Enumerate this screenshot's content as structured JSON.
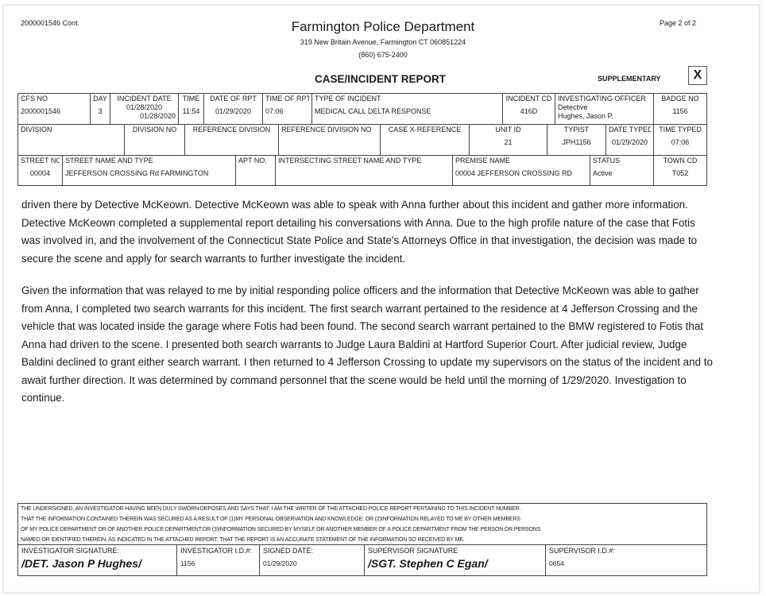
{
  "header": {
    "case_cont": "2000001546 Cont.",
    "page": "Page 2 of 2",
    "department": "Farmington Police Department",
    "address": "319 New Britain Avenue, Farmington  CT 060851224",
    "phone": "(860) 675-2400",
    "report_title": "CASE/INCIDENT REPORT",
    "report_type": "SUPPLEMENTARY",
    "checkbox_mark": "X"
  },
  "table": {
    "row1": [
      {
        "label": "CFS NO",
        "value": "2000001546"
      },
      {
        "label": "DAY",
        "value": "3"
      },
      {
        "label": "INCIDENT DATE",
        "value": "01/28/2020",
        "value2": "01/28/2020"
      },
      {
        "label": "TIME",
        "value": "11:54"
      },
      {
        "label": "DATE OF RPT",
        "value": "01/29/2020"
      },
      {
        "label": "TIME OF RPT",
        "value": "07:06"
      },
      {
        "label": "TYPE OF INCIDENT",
        "value": "MEDICAL CALL DELTA RESPONSE"
      },
      {
        "label": "INCIDENT CD",
        "value": "416D"
      },
      {
        "label": "INVESTIGATING OFFICER",
        "value": "Detective",
        "value2": "Hughes,  Jason P."
      },
      {
        "label": "BADGE NO",
        "value": "1156"
      }
    ],
    "row2": [
      {
        "label": "DIVISION",
        "value": ""
      },
      {
        "label": "DIVISION NO",
        "value": ""
      },
      {
        "label": "REFERENCE DIVISION",
        "value": ""
      },
      {
        "label": "REFERENCE DIVISION NO",
        "value": ""
      },
      {
        "label": "CASE X-REFERENCE",
        "value": ""
      },
      {
        "label": "UNIT ID",
        "value": "21"
      },
      {
        "label": "TYPIST",
        "value": "JPH1156"
      },
      {
        "label": "DATE TYPED",
        "value": "01/29/2020"
      },
      {
        "label": "TIME TYPED",
        "value": "07:06"
      }
    ],
    "row3": [
      {
        "label": "STREET NO",
        "value": "00004"
      },
      {
        "label": "STREET NAME AND TYPE",
        "value": "JEFFERSON CROSSING Rd   FARMINGTON"
      },
      {
        "label": "APT NO.",
        "value": ""
      },
      {
        "label": "INTERSECTING STREET NAME AND TYPE",
        "value": ""
      },
      {
        "label": "PREMISE NAME",
        "value": "00004 JEFFERSON CROSSING RD"
      },
      {
        "label": "STATUS",
        "value": "Active"
      },
      {
        "label": "TOWN CD",
        "value": "T052"
      }
    ]
  },
  "narrative": [
    "driven there by Detective McKeown. Detective McKeown was able to speak with Anna further about this incident and gather more information. Detective McKeown completed a supplemental report detailing his conversations with Anna. Due to the high profile nature of the case that Fotis was involved in, and the involvement of the Connecticut State Police and State's Attorneys Office in that investigation, the decision was made to secure the scene and apply for search warrants to further investigate the incident.",
    "Given the information that was relayed to me by initial responding police officers and the information that Detective McKeown was able to gather from Anna, I completed two search warrants for this incident. The first search warrant pertained to the residence at 4 Jefferson Crossing and the vehicle that was located inside the garage where Fotis had been found. The second search warrant pertained to the BMW registered to Fotis that Anna had driven to the scene. I presented both search warrants to Judge Laura Baldini at Hartford Superior Court. After judicial review, Judge Baldini declined to grant either search warrant. I then returned to 4 Jefferson Crossing to update my supervisors on the status of the incident and to await further direction. It was determined by command personnel that the scene would be held until the morning of 1/29/2020. Investigation to continue."
  ],
  "footer": {
    "oath": [
      "THE UNDERSIGNED, AN INVESTIGATOR HAVING BEEN DULY SWORN  DEPOSES AND SAYS THAT: I AM THE WRITER OF THE ATTACHED POLICE REPORT PERTAINING TO THIS INCIDENT NUMBER.",
      "THAT THE INFORMATION CONTAINED THEREIN WAS SECURED AS A RESULT OF (1)MY PERSONAL OBSERVATION AND KNOWLEDGE: OR (2)INFORMATION RELAYED TO ME BY OTHER MEMBERS",
      "OF MY POLICE DEPARTMENT OR OF ANOTHER POLICE DEPARTMENT:OR (3)INFORMATION SECURED BY MYSELF OR ANOTHER MEMBER OF A POLICE DEPARTMENT FROM THE PERSON OR PERSONS",
      "NAMED OR IDENTIFIED THEREIN, AS INDICATED IN THE ATTACHED REPORT.  THAT THE REPORT IS AN ACCURATE STATEMENT OF THE INFORMATION SO RECEIVED BY ME."
    ],
    "investigator_signature_label": "INVESTIGATOR SIGNATURE:",
    "investigator_signature": "/DET. Jason P Hughes/",
    "investigator_id_label": "INVESTIGATOR I.D.#:",
    "investigator_id": "1156",
    "signed_date_label": "SIGNED DATE:",
    "signed_date": "01/29/2020",
    "supervisor_signature_label": "SUPERVISOR SIGNATURE",
    "supervisor_signature": "/SGT. Stephen C Egan/",
    "supervisor_id_label": "SUPERVISOR I.D.#:",
    "supervisor_id": "0654"
  }
}
